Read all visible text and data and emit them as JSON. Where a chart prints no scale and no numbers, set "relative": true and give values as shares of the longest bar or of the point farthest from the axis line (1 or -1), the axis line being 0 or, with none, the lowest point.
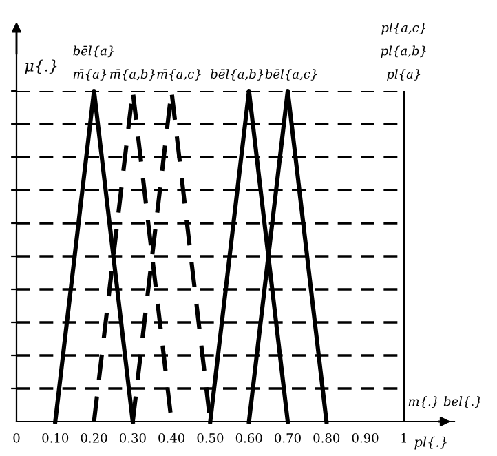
{
  "chart_data": {
    "type": "line",
    "relative": true,
    "ylabel": "μ{.}",
    "xlabel": "pl{.}",
    "xlim": [
      0,
      1.13
    ],
    "xticks": [
      {
        "value": 0,
        "label": "0"
      },
      {
        "value": 0.1,
        "label": "0.10"
      },
      {
        "value": 0.2,
        "label": "0.20"
      },
      {
        "value": 0.3,
        "label": "0.30"
      },
      {
        "value": 0.4,
        "label": "0.40"
      },
      {
        "value": 0.5,
        "label": "0.50"
      },
      {
        "value": 0.6,
        "label": "0.60"
      },
      {
        "value": 0.7,
        "label": "0.70"
      },
      {
        "value": 0.8,
        "label": "0.80"
      },
      {
        "value": 0.9,
        "label": "0.90"
      },
      1
    ],
    "series": [
      {
        "x": [
          0.1,
          0.2,
          0.3
        ],
        "values": [
          0,
          1,
          0
        ],
        "color": "#000000",
        "line_style": "solid"
      },
      {
        "x": [
          0.2,
          0.3,
          0.4
        ],
        "values": [
          0,
          1,
          0
        ],
        "color": "#000000",
        "line_style": "dashed"
      },
      {
        "x": [
          0.3,
          0.4,
          0.5
        ],
        "values": [
          0,
          1,
          0
        ],
        "color": "#000000",
        "line_style": "dashed"
      },
      {
        "x": [
          0.5,
          0.6,
          0.7
        ],
        "values": [
          0,
          1,
          0
        ],
        "color": "#000000",
        "line_style": "solid"
      },
      {
        "x": [
          0.6,
          0.7,
          0.8
        ],
        "values": [
          0,
          1,
          0
        ],
        "color": "#000000",
        "line_style": "solid"
      }
    ],
    "ref_lines": [
      {
        "axis": "y",
        "value": 0.1,
        "line_style": "dashed",
        "color": "#000000"
      },
      {
        "axis": "y",
        "value": 0.2,
        "line_style": "dashed",
        "color": "#000000"
      },
      {
        "axis": "y",
        "value": 0.3,
        "line_style": "dashed",
        "color": "#000000"
      },
      {
        "axis": "y",
        "value": 0.4,
        "line_style": "dashed",
        "color": "#000000"
      },
      {
        "axis": "y",
        "value": 0.5,
        "line_style": "dashed",
        "color": "#000000"
      },
      {
        "axis": "y",
        "value": 0.6,
        "line_style": "dashed",
        "color": "#000000"
      },
      {
        "axis": "y",
        "value": 0.7,
        "line_style": "dashed",
        "color": "#000000"
      },
      {
        "axis": "y",
        "value": 0.8,
        "line_style": "dashed",
        "color": "#000000"
      },
      {
        "axis": "y",
        "value": 0.9,
        "line_style": "dashed",
        "color": "#000000"
      },
      {
        "axis": "y",
        "value": 1,
        "line_style": "dashed",
        "color": "#000000"
      },
      {
        "axis": "x",
        "value": 1,
        "line_style": "solid",
        "color": "#000000"
      }
    ],
    "annotations": [
      "bēl{a}",
      "m̄{a}",
      "m̄{a,b}",
      "m̄{a,c}",
      "bēl{a,b}",
      "bēl{a,c}",
      "pl{a}",
      "pl{a,b}",
      "pl{a,c}",
      "m{.} bel{.}"
    ],
    "legend": false,
    "marker": "none"
  }
}
